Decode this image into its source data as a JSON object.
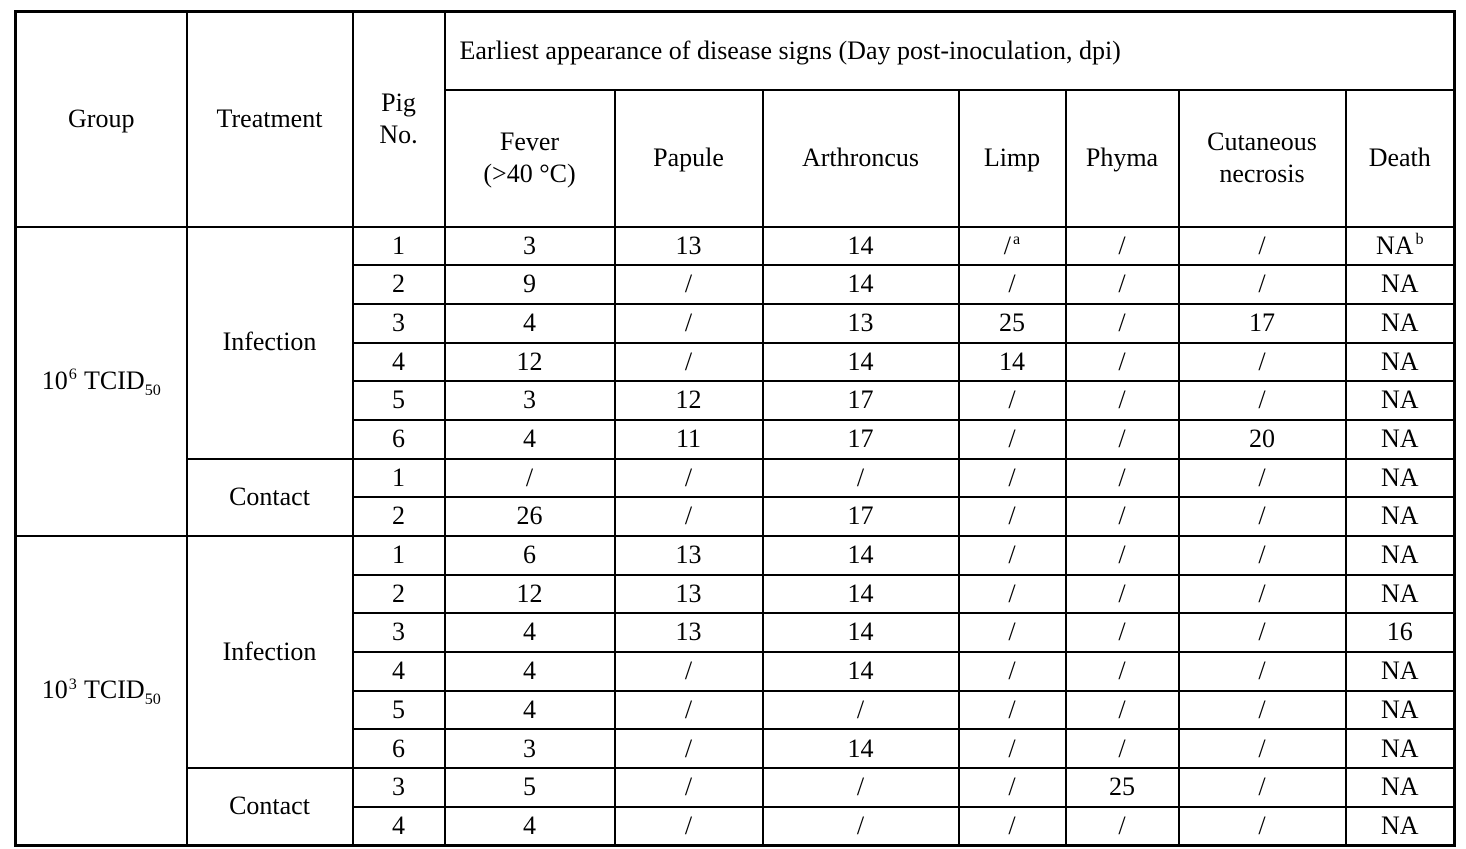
{
  "colors": {
    "background": "#ffffff",
    "border": "#000000",
    "text": "#000000"
  },
  "table": {
    "header": {
      "col_group": "Group",
      "col_treatment": "Treatment",
      "col_pig_line1": "Pig",
      "col_pig_line2": "No.",
      "span_title": "Earliest appearance of disease signs (Day post-inoculation, dpi)",
      "col_fever_line1": "Fever",
      "col_fever_line2": "(>40 °C)",
      "col_papule": "Papule",
      "col_arthroncus": "Arthroncus",
      "col_limp": "Limp",
      "col_phyma": "Phyma",
      "col_cutaneous_line1": "Cutaneous",
      "col_cutaneous_line2": "necrosis",
      "col_death": "Death"
    },
    "groups": [
      {
        "label": {
          "base": "10",
          "sup": "6",
          "name": "TCID",
          "sub": "50"
        },
        "treatments": [
          {
            "label": "Infection",
            "rows": [
              {
                "cells": [
                  "1",
                  "3",
                  "13",
                  "14",
                  {
                    "v": "/",
                    "sup": "a"
                  },
                  "/",
                  "/",
                  {
                    "v": "NA",
                    "sup": "b"
                  }
                ]
              },
              {
                "cells": [
                  "2",
                  "9",
                  "/",
                  "14",
                  "/",
                  "/",
                  "/",
                  "NA"
                ]
              },
              {
                "cells": [
                  "3",
                  "4",
                  "/",
                  "13",
                  "25",
                  "/",
                  "17",
                  "NA"
                ]
              },
              {
                "cells": [
                  "4",
                  "12",
                  "/",
                  "14",
                  "14",
                  "/",
                  "/",
                  "NA"
                ]
              },
              {
                "cells": [
                  "5",
                  "3",
                  "12",
                  "17",
                  "/",
                  "/",
                  "/",
                  "NA"
                ]
              },
              {
                "cells": [
                  "6",
                  "4",
                  "11",
                  "17",
                  "/",
                  "/",
                  "20",
                  "NA"
                ]
              }
            ]
          },
          {
            "label": "Contact",
            "rows": [
              {
                "cells": [
                  "1",
                  "/",
                  "/",
                  "/",
                  "/",
                  "/",
                  "/",
                  "NA"
                ]
              },
              {
                "cells": [
                  "2",
                  "26",
                  "/",
                  "17",
                  "/",
                  "/",
                  "/",
                  "NA"
                ]
              }
            ]
          }
        ]
      },
      {
        "label": {
          "base": "10",
          "sup": "3",
          "name": "TCID",
          "sub": "50"
        },
        "treatments": [
          {
            "label": "Infection",
            "rows": [
              {
                "cells": [
                  "1",
                  "6",
                  "13",
                  "14",
                  "/",
                  "/",
                  "/",
                  "NA"
                ]
              },
              {
                "cells": [
                  "2",
                  "12",
                  "13",
                  "14",
                  "/",
                  "/",
                  "/",
                  "NA"
                ]
              },
              {
                "cells": [
                  "3",
                  "4",
                  "13",
                  "14",
                  "/",
                  "/",
                  "/",
                  "16"
                ]
              },
              {
                "cells": [
                  "4",
                  "4",
                  "/",
                  "14",
                  "/",
                  "/",
                  "/",
                  "NA"
                ]
              },
              {
                "cells": [
                  "5",
                  "4",
                  "/",
                  "/",
                  "/",
                  "/",
                  "/",
                  "NA"
                ]
              },
              {
                "cells": [
                  "6",
                  "3",
                  "/",
                  "14",
                  "/",
                  "/",
                  "/",
                  "NA"
                ]
              }
            ]
          },
          {
            "label": "Contact",
            "rows": [
              {
                "cells": [
                  "3",
                  "5",
                  "/",
                  "/",
                  "/",
                  "25",
                  "/",
                  "NA"
                ]
              },
              {
                "cells": [
                  "4",
                  "4",
                  "/",
                  "/",
                  "/",
                  "/",
                  "/",
                  "NA"
                ]
              }
            ]
          }
        ]
      }
    ]
  }
}
